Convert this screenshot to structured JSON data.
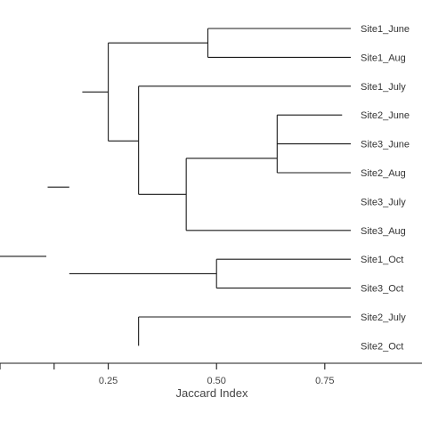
{
  "chart_data": {
    "type": "dendrogram",
    "xlabel": "Jaccard Index",
    "xlim": [
      0,
      0.81
    ],
    "ticks": [
      {
        "value": 0.0,
        "label": ""
      },
      {
        "value": 0.125,
        "label": ""
      },
      {
        "value": 0.25,
        "label": "0.25"
      },
      {
        "value": 0.5,
        "label": "0.50"
      },
      {
        "value": 0.75,
        "label": "0.75"
      }
    ],
    "leaves": [
      "Site1_June",
      "Site1_Aug",
      "Site1_July",
      "Site2_June",
      "Site3_June",
      "Site2_Aug",
      "Site3_July",
      "Site3_Aug",
      "Site1_Oct",
      "Site3_Oct",
      "Site2_July",
      "Site2_Oct"
    ],
    "merges": [
      {
        "x": 0.79,
        "y0": 3,
        "y1": 4
      },
      {
        "x": 0.64,
        "y0": 3.5,
        "y1": 5
      },
      {
        "x": 0.43,
        "y0": 4.25,
        "y1": 7
      },
      {
        "x": 0.32,
        "y0": 2,
        "y1": 5.625
      },
      {
        "x": 0.48,
        "y0": 0,
        "y1": 1
      },
      {
        "x": 0.25,
        "y0": 0.5,
        "y1": 3.8125
      },
      {
        "x": 0.5,
        "y0": 8,
        "y1": 9
      },
      {
        "x": 0.32,
        "y0": 10,
        "y1": 11
      },
      {
        "x": 0.19,
        "y0": 2.15625,
        "y1": 2.15625
      },
      {
        "x": 0.13,
        "y0": 8.5,
        "y1": 8.5
      },
      {
        "x": 0.09,
        "y0": 8.3,
        "y1": 8.3
      },
      {
        "x": 0.06,
        "y0": 10.5,
        "y1": 10.5
      }
    ]
  }
}
